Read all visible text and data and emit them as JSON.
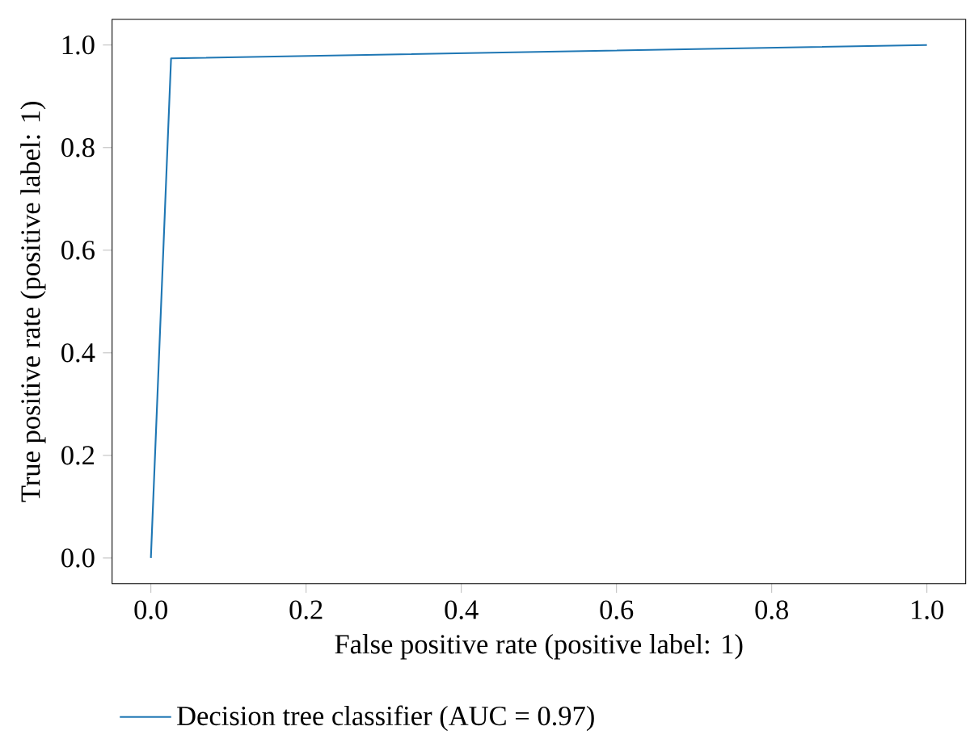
{
  "chart_data": {
    "type": "line",
    "xlabel": "False positive rate (positive label: 1)",
    "ylabel": "True positive rate (positive label: 1)",
    "series": [
      {
        "name": "Decision tree classifier (AUC = 0.97)",
        "color": "#1f77b4",
        "x": [
          0,
          0.026,
          1
        ],
        "values": [
          0,
          0.974,
          1
        ]
      }
    ],
    "xlim": [
      -0.05,
      1.05
    ],
    "ylim": [
      -0.05,
      1.05
    ],
    "xticks": [
      {
        "value": 0,
        "label": "0.0"
      },
      0.2,
      0.4,
      0.6,
      0.8,
      {
        "value": 1,
        "label": "1.0"
      }
    ],
    "yticks": [
      {
        "value": 0,
        "label": "0.0"
      },
      0.2,
      0.4,
      0.6,
      0.8,
      {
        "value": 1,
        "label": "1.0"
      }
    ],
    "grid": false,
    "legend": "bottom",
    "marker": "none",
    "line_style": "solid"
  }
}
